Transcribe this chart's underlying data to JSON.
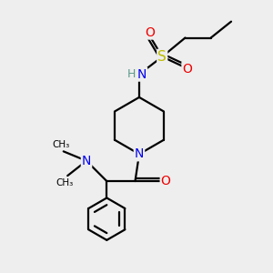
{
  "bg_color": "#eeeeee",
  "atom_colors": {
    "C": "#000000",
    "H": "#5a9a8a",
    "N": "#0000ee",
    "O": "#ee0000",
    "S": "#bbbb00"
  },
  "bond_color": "#000000",
  "bond_width": 1.6
}
